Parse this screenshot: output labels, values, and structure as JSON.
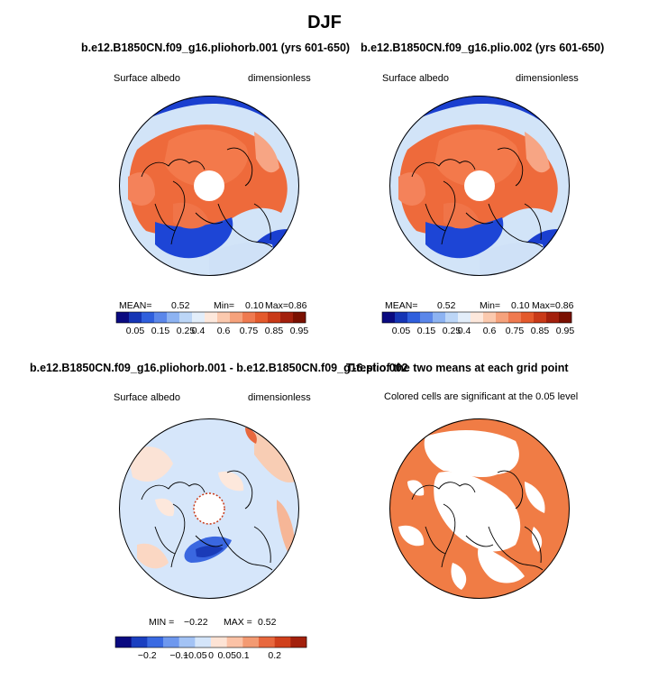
{
  "title": "DJF",
  "chart_data": [
    {
      "type": "heatmap",
      "title": "b.e12.B1850CN.f09_g16.pliohorb.001 (yrs 601-650)",
      "variable_label": "Surface albedo",
      "units_label": "dimensionless",
      "stats": {
        "mean_label": "MEAN=",
        "mean": "0.52",
        "min_label": "Min=",
        "min": "0.10",
        "max_label": "Max=",
        "max": "0.86"
      },
      "colorbar": {
        "ticks": [
          "0.05",
          "0.15",
          "0.25",
          "0.4",
          "0.6",
          "0.75",
          "0.85",
          "0.95"
        ],
        "colors": [
          "#0a0a80",
          "#1535b5",
          "#2f5fdd",
          "#5b87ea",
          "#8db3f2",
          "#bcd6f7",
          "#e3eefa",
          "#fde8dc",
          "#fbc9ae",
          "#f6a27c",
          "#ef7a50",
          "#e45a2c",
          "#c93a18",
          "#a3200c",
          "#7a1000"
        ]
      }
    },
    {
      "type": "heatmap",
      "title": "b.e12.B1850CN.f09_g16.plio.002 (yrs 601-650)",
      "variable_label": "Surface albedo",
      "units_label": "dimensionless",
      "stats": {
        "mean_label": "MEAN=",
        "mean": "0.52",
        "min_label": "Min=",
        "min": "0.10",
        "max_label": "Max=",
        "max": "0.86"
      },
      "colorbar": {
        "ticks": [
          "0.05",
          "0.15",
          "0.25",
          "0.4",
          "0.6",
          "0.75",
          "0.85",
          "0.95"
        ],
        "colors": [
          "#0a0a80",
          "#1535b5",
          "#2f5fdd",
          "#5b87ea",
          "#8db3f2",
          "#bcd6f7",
          "#e3eefa",
          "#fde8dc",
          "#fbc9ae",
          "#f6a27c",
          "#ef7a50",
          "#e45a2c",
          "#c93a18",
          "#a3200c",
          "#7a1000"
        ]
      }
    },
    {
      "type": "heatmap",
      "title": "b.e12.B1850CN.f09_g16.pliohorb.001 - b.e12.B1850CN.f09_g16.plio.002",
      "variable_label": "Surface albedo",
      "units_label": "dimensionless",
      "stats": {
        "min_label": "MIN =",
        "min": "−0.22",
        "max_label": "MAX =",
        "max": "0.52"
      },
      "colorbar": {
        "ticks": [
          "−0.2",
          "−0.1",
          "−0.05",
          "0",
          "0.05",
          "0.1",
          "0.2"
        ],
        "colors": [
          "#0a0a80",
          "#1a3fc0",
          "#3a6ae2",
          "#6e98ee",
          "#a3c3f5",
          "#d4e5fa",
          "#fde3d5",
          "#fbc2a6",
          "#f39a72",
          "#e8683e",
          "#d0401c",
          "#a3200c"
        ]
      }
    },
    {
      "type": "heatmap",
      "title": "T-test of the two means at each grid point",
      "variable_label": "Colored cells are significant at the 0.05 level",
      "fill_color": "#f07c45"
    }
  ]
}
